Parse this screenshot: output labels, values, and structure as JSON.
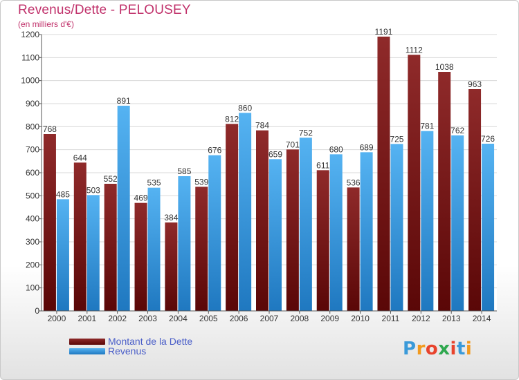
{
  "header": {
    "title": "Revenus/Dette - PELOUSEY",
    "subtitle": "(en milliers d'€)"
  },
  "chart_data": {
    "type": "bar",
    "categories": [
      "2000",
      "2001",
      "2002",
      "2003",
      "2004",
      "2005",
      "2006",
      "2007",
      "2008",
      "2009",
      "2010",
      "2011",
      "2012",
      "2013",
      "2014"
    ],
    "series": [
      {
        "name": "Montant de la Dette",
        "color": "#8b1c1c",
        "values": [
          768,
          644,
          552,
          469,
          384,
          539,
          812,
          784,
          701,
          611,
          536,
          1191,
          1112,
          1038,
          963
        ]
      },
      {
        "name": "Revenus",
        "color": "#3d9be0",
        "values": [
          485,
          503,
          891,
          535,
          585,
          676,
          860,
          659,
          752,
          680,
          689,
          725,
          781,
          762,
          726
        ]
      }
    ],
    "yticks": [
      0,
      100,
      200,
      300,
      400,
      500,
      600,
      700,
      800,
      900,
      1000,
      1100,
      1200
    ],
    "ylim": [
      0,
      1200
    ],
    "grid": true,
    "legend_position": "bottom-left"
  },
  "legend": {
    "debt_label": "Montant de la Dette",
    "revenue_label": "Revenus"
  },
  "logo": {
    "letters": [
      "P",
      "r",
      "o",
      "x",
      "i",
      "t",
      "i"
    ],
    "colors": [
      "#3a9ad9",
      "#f29a1e",
      "#e8432c",
      "#2fa84f",
      "#e8432c",
      "#3a9ad9",
      "#f29a1e"
    ]
  }
}
